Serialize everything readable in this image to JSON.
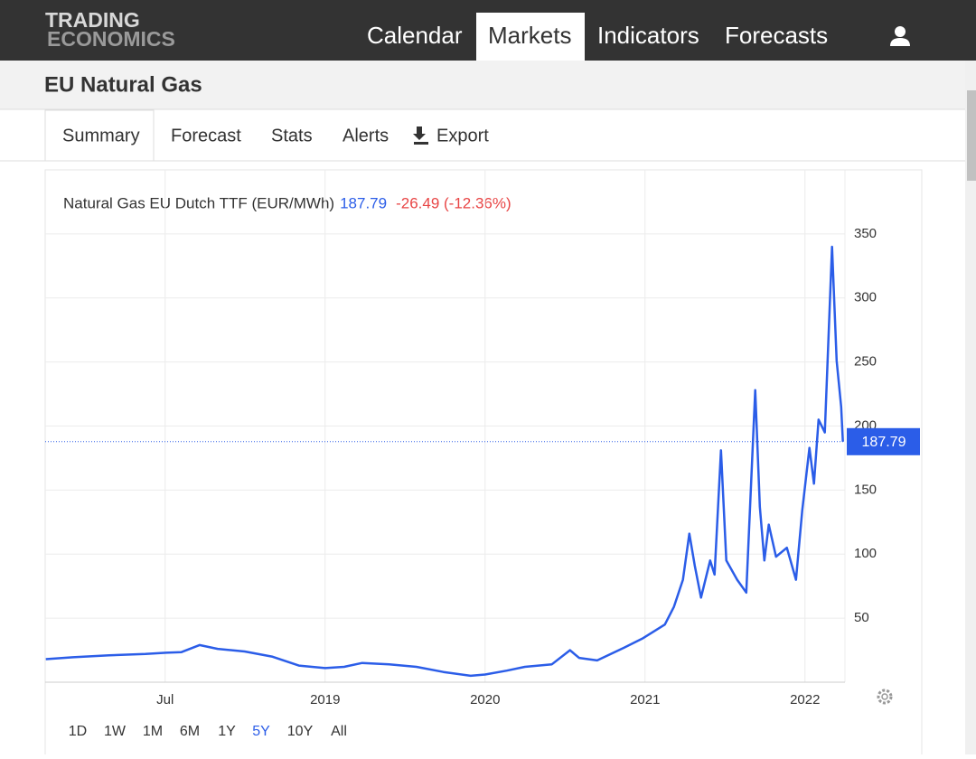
{
  "header": {
    "logo": [
      "TRADING",
      "ECONOMICS"
    ],
    "nav": [
      "Calendar",
      "Markets",
      "Indicators",
      "Forecasts"
    ],
    "active_nav": 1
  },
  "page_title": "EU Natural Gas",
  "tabs": [
    "Summary",
    "Forecast",
    "Stats",
    "Alerts",
    "Export"
  ],
  "active_tab": 0,
  "chart_data": {
    "type": "line",
    "title": "Natural Gas EU Dutch TTF (EUR/MWh)",
    "change": "-26.49 (-12.36%)",
    "color": "#2b5de8",
    "x": [
      2017.254,
      2017.424,
      2017.65,
      2017.876,
      2018.006,
      2018.102,
      2018.215,
      2018.328,
      2018.497,
      2018.667,
      2018.836,
      2019.0,
      2019.119,
      2019.232,
      2019.401,
      2019.571,
      2019.74,
      2019.91,
      2020.0,
      2020.136,
      2020.249,
      2020.418,
      2020.531,
      2020.588,
      2020.701,
      2020.87,
      2020.983,
      2021.124,
      2021.181,
      2021.237,
      2021.277,
      2021.311,
      2021.35,
      2021.407,
      2021.435,
      2021.475,
      2021.508,
      2021.576,
      2021.633,
      2021.689,
      2021.718,
      2021.746,
      2021.774,
      2021.819,
      2021.887,
      2021.944,
      2021.983,
      2022.028,
      2022.056,
      2022.085,
      2022.124,
      2022.169,
      2022.198,
      2022.226,
      2022.237
    ],
    "values": [
      18,
      19.5,
      21,
      22,
      23,
      23.5,
      29,
      26,
      24,
      20,
      13,
      11,
      12,
      15,
      14,
      12,
      8,
      5,
      6,
      9,
      12,
      14,
      25,
      19,
      17,
      27,
      34,
      45,
      59,
      80,
      116,
      91,
      66,
      95,
      84,
      181,
      95,
      80,
      70,
      228,
      137,
      95,
      123,
      98,
      105,
      80,
      134,
      183,
      155,
      205,
      195,
      340,
      251,
      215,
      187.79
    ],
    "xlim": [
      2017.25,
      2022.25
    ],
    "ylim": [
      0,
      400
    ],
    "xticks": [
      {
        "value": 2018,
        "label": "Jul"
      },
      2019,
      2020,
      2021,
      2022
    ],
    "yticks": [
      50,
      100,
      150,
      200,
      250,
      300,
      350
    ],
    "grid": true
  },
  "ranges": [
    "1D",
    "1W",
    "1M",
    "6M",
    "1Y",
    "5Y",
    "10Y",
    "All"
  ],
  "active_range": 5
}
